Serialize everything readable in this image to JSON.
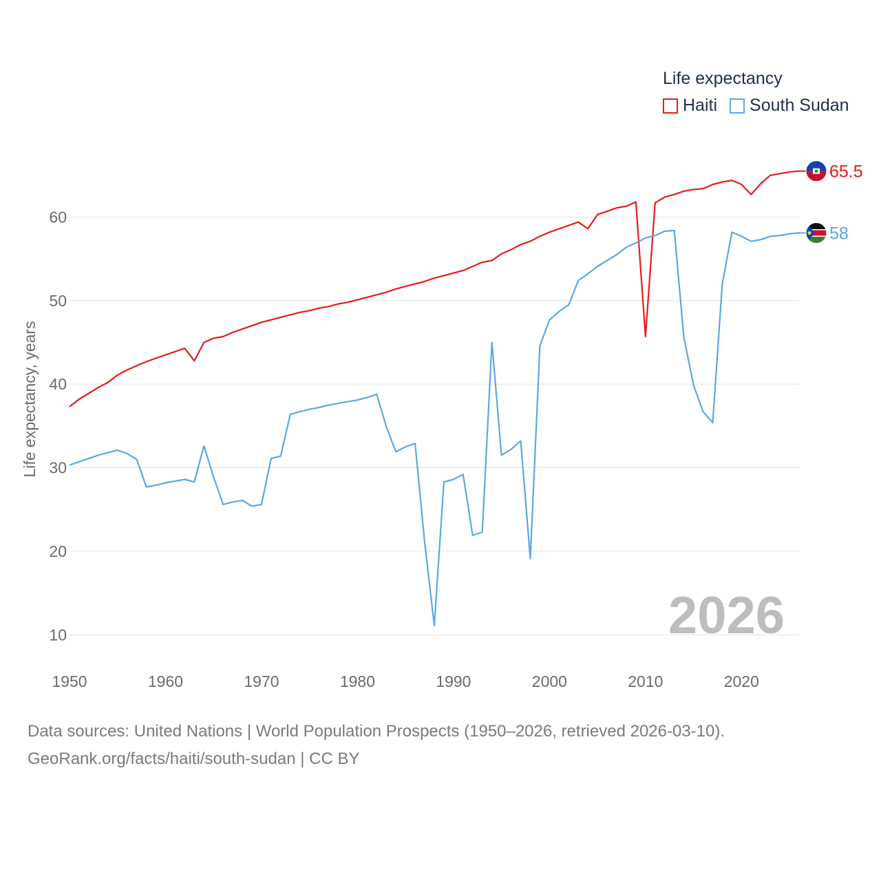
{
  "legend": {
    "title": "Life expectancy",
    "items": [
      {
        "name": "Haiti",
        "color": "#e8191b"
      },
      {
        "name": "South Sudan",
        "color": "#5ca7e3"
      }
    ]
  },
  "chart_data": {
    "type": "line",
    "ylabel": "Life expectancy, years",
    "xlabel": "",
    "xlim": [
      1950,
      2026
    ],
    "ylim": [
      5,
      70
    ],
    "x_ticks": [
      1950,
      1960,
      1970,
      1980,
      1990,
      2000,
      2010,
      2020
    ],
    "y_ticks": [
      10,
      20,
      30,
      40,
      50,
      60
    ],
    "year_label": "2026",
    "grid": true,
    "series": [
      {
        "name": "Haiti",
        "color": "#e8191b",
        "end_label": "65.5",
        "flag_icon": "haiti-flag-icon",
        "x": [
          1950,
          1951,
          1952,
          1953,
          1954,
          1955,
          1956,
          1957,
          1958,
          1959,
          1960,
          1961,
          1962,
          1963,
          1964,
          1965,
          1966,
          1967,
          1968,
          1969,
          1970,
          1971,
          1972,
          1973,
          1974,
          1975,
          1976,
          1977,
          1978,
          1979,
          1980,
          1981,
          1982,
          1983,
          1984,
          1985,
          1986,
          1987,
          1988,
          1989,
          1990,
          1991,
          1992,
          1993,
          1994,
          1995,
          1996,
          1997,
          1998,
          1999,
          2000,
          2001,
          2002,
          2003,
          2004,
          2005,
          2006,
          2007,
          2008,
          2009,
          2010,
          2011,
          2012,
          2013,
          2014,
          2015,
          2016,
          2017,
          2018,
          2019,
          2020,
          2021,
          2022,
          2023,
          2024,
          2025,
          2026
        ],
        "values": [
          37.3,
          38.2,
          38.9,
          39.6,
          40.2,
          41.1,
          41.7,
          42.2,
          42.7,
          43.1,
          43.5,
          43.9,
          44.3,
          42.8,
          45.0,
          45.5,
          45.7,
          46.2,
          46.6,
          47.0,
          47.4,
          47.7,
          48.0,
          48.3,
          48.6,
          48.8,
          49.1,
          49.3,
          49.6,
          49.8,
          50.1,
          50.4,
          50.7,
          51.0,
          51.4,
          51.7,
          52.0,
          52.3,
          52.7,
          53.0,
          53.3,
          53.6,
          54.1,
          54.6,
          54.8,
          55.6,
          56.1,
          56.7,
          57.1,
          57.7,
          58.2,
          58.6,
          59.0,
          59.4,
          58.6,
          60.3,
          60.7,
          61.1,
          61.3,
          61.8,
          45.7,
          61.7,
          62.4,
          62.7,
          63.1,
          63.3,
          63.4,
          63.9,
          64.2,
          64.4,
          63.9,
          62.7,
          64.0,
          65.0,
          65.2,
          65.4,
          65.5
        ]
      },
      {
        "name": "South Sudan",
        "color": "#5ca7e3",
        "end_label": "58",
        "flag_icon": "south-sudan-flag-icon",
        "x": [
          1950,
          1951,
          1952,
          1953,
          1954,
          1955,
          1956,
          1957,
          1958,
          1959,
          1960,
          1961,
          1962,
          1963,
          1964,
          1965,
          1966,
          1967,
          1968,
          1969,
          1970,
          1971,
          1972,
          1973,
          1974,
          1975,
          1976,
          1977,
          1978,
          1979,
          1980,
          1981,
          1982,
          1983,
          1984,
          1985,
          1986,
          1987,
          1988,
          1989,
          1990,
          1991,
          1992,
          1993,
          1994,
          1995,
          1996,
          1997,
          1998,
          1999,
          2000,
          2001,
          2002,
          2003,
          2004,
          2005,
          2006,
          2007,
          2008,
          2009,
          2010,
          2011,
          2012,
          2013,
          2014,
          2015,
          2016,
          2017,
          2018,
          2019,
          2020,
          2021,
          2022,
          2023,
          2024,
          2025,
          2026
        ],
        "values": [
          30.3,
          30.7,
          31.1,
          31.5,
          31.8,
          32.1,
          31.7,
          31.0,
          27.7,
          27.9,
          28.2,
          28.4,
          28.6,
          28.3,
          32.6,
          28.9,
          25.6,
          25.9,
          26.1,
          25.4,
          25.6,
          31.1,
          31.4,
          36.4,
          36.7,
          37.0,
          37.2,
          37.5,
          37.7,
          37.9,
          38.1,
          38.4,
          38.8,
          34.9,
          31.9,
          32.5,
          32.9,
          21.0,
          11.1,
          28.3,
          28.6,
          29.2,
          21.9,
          22.3,
          45.0,
          31.5,
          32.2,
          33.2,
          19.1,
          44.6,
          47.7,
          48.7,
          49.5,
          52.4,
          53.2,
          54.1,
          54.8,
          55.5,
          56.4,
          56.9,
          57.5,
          57.8,
          58.3,
          58.4,
          45.6,
          39.9,
          36.7,
          35.4,
          52.0,
          58.2,
          57.7,
          57.1,
          57.3,
          57.7,
          57.8,
          58.0,
          58.1
        ]
      }
    ]
  },
  "source": {
    "line1": "Data sources: United Nations | World Population Prospects (1950–2026, retrieved 2026-03-10).",
    "line2": "GeoRank.org/facts/haiti/south-sudan | CC BY"
  }
}
